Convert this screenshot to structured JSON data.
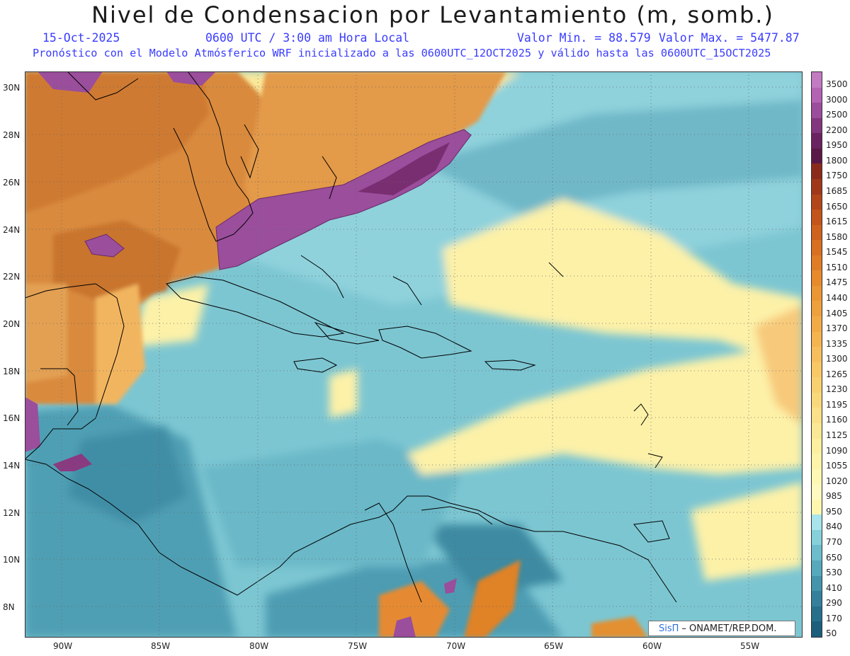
{
  "header": {
    "title": "Nivel de Condensacion por Levantamiento (m, somb.)",
    "date": "15-Oct-2025",
    "time": "0600 UTC / 3:00 am Hora Local",
    "min": "Valor Min. = 88.579",
    "max": "Valor Max. = 5477.87",
    "model_line": "Pronóstico con el Modelo Atmósferico WRF inicializado a las 0600UTC_12OCT2025 y válido hasta las  0600UTC_15OCT2025"
  },
  "map": {
    "lat_labels": [
      "30N",
      "28N",
      "26N",
      "24N",
      "22N",
      "20N",
      "18N",
      "16N",
      "14N",
      "12N",
      "10N",
      "8N"
    ],
    "lon_labels": [
      "90W",
      "85W",
      "80W",
      "75W",
      "70W",
      "65W",
      "60W",
      "55W"
    ]
  },
  "colorbar": {
    "labels": [
      "3500",
      "3000",
      "2500",
      "2200",
      "1950",
      "1800",
      "1750",
      "1685",
      "1650",
      "1615",
      "1580",
      "1545",
      "1510",
      "1475",
      "1440",
      "1405",
      "1370",
      "1335",
      "1300",
      "1265",
      "1230",
      "1195",
      "1160",
      "1125",
      "1090",
      "1055",
      "1020",
      "985",
      "950",
      "840",
      "770",
      "650",
      "530",
      "410",
      "290",
      "170",
      "50"
    ],
    "colors": [
      "#c27ac2",
      "#b462b4",
      "#9c4c9c",
      "#82367e",
      "#6a2260",
      "#5a1846",
      "#8a2a1a",
      "#a0381a",
      "#b2461a",
      "#c2541c",
      "#ce621e",
      "#d87022",
      "#e07c26",
      "#e68a2c",
      "#ea9634",
      "#eea03c",
      "#f2aa46",
      "#f4b450",
      "#f6be5c",
      "#f8c866",
      "#f8d070",
      "#f9d87c",
      "#fae088",
      "#fbe894",
      "#fcefa0",
      "#fdf4aa",
      "#fef8b4",
      "#fffbc0",
      "#fff6b0",
      "#a8e4ec",
      "#86d0da",
      "#6cbccc",
      "#56a8bc",
      "#4494ac",
      "#34809c",
      "#26708c",
      "#1c5e7c"
    ]
  },
  "credit": {
    "sis": "SisΠ",
    "text": "– ONAMET/REP.DOM."
  }
}
